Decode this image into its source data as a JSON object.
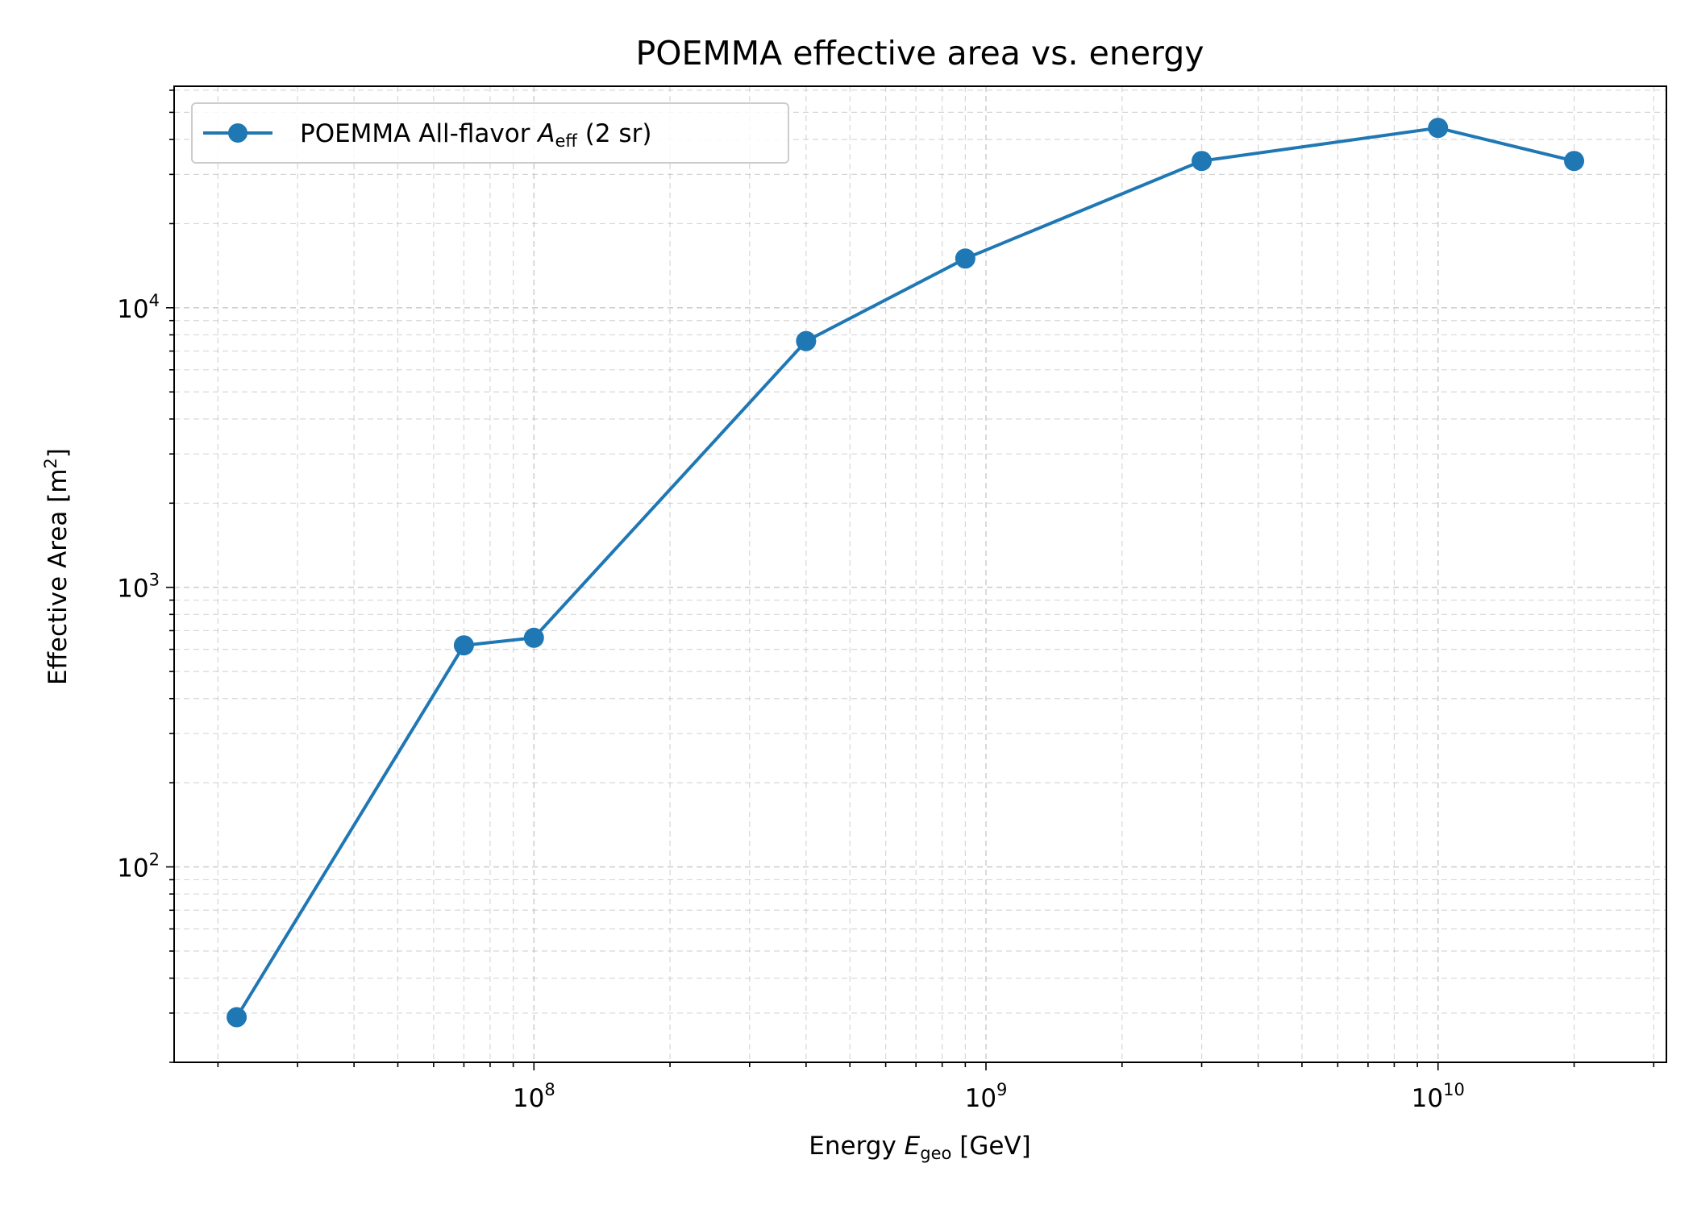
{
  "chart_data": {
    "type": "line",
    "title": "POEMMA effective area vs. energy",
    "xlabel": {
      "prefix": "Energy ",
      "var": "E",
      "sub": "geo",
      "suffix": " [GeV]"
    },
    "ylabel": {
      "text": "Effective Area [m",
      "sup": "2",
      "suffix": "]"
    },
    "x_scale": "log",
    "y_scale": "log",
    "xlim": [
      16000000.0,
      32000000000.0
    ],
    "ylim": [
      20,
      62000
    ],
    "x_ticks": [
      {
        "base": "10",
        "exp": "8"
      },
      {
        "base": "10",
        "exp": "9"
      },
      {
        "base": "10",
        "exp": "10"
      }
    ],
    "y_ticks": [
      {
        "base": "10",
        "exp": "2"
      },
      {
        "base": "10",
        "exp": "3"
      },
      {
        "base": "10",
        "exp": "4"
      }
    ],
    "grid": true,
    "legend_position": "top-left",
    "color": "#1f77b4",
    "series": [
      {
        "name": {
          "prefix": "POEMMA All-flavor ",
          "var": "A",
          "sub": "eff",
          "suffix": " (2 sr)"
        },
        "x": [
          22000000.0,
          70000000.0,
          100000000.0,
          400000000.0,
          900000000.0,
          3000000000.0,
          10000000000.0,
          20000000000.0
        ],
        "y": [
          29,
          620,
          660,
          7600,
          15000,
          33500,
          44000,
          33500
        ]
      }
    ]
  }
}
